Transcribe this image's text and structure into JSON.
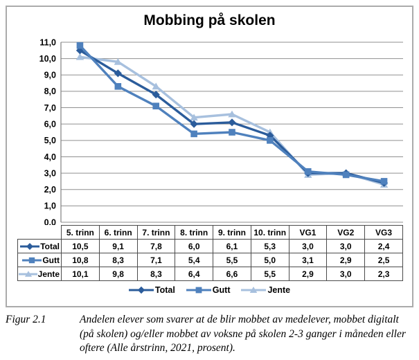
{
  "figure": {
    "caption_label": "Figur 2.1",
    "caption_text": "Andelen elever som svarer at de blir mobbet av medelever, mobbet digitalt (på skolen) og/eller mobbet av voksne på skolen 2-3 ganger i måneden eller oftere (Alle årstrinn, 2021, prosent)."
  },
  "chart_data": {
    "type": "line",
    "title": "Mobbing på skolen",
    "categories": [
      "5. trinn",
      "6. trinn",
      "7. trinn",
      "8. trinn",
      "9. trinn",
      "10. trinn",
      "VG1",
      "VG2",
      "VG3"
    ],
    "series": [
      {
        "name": "Total",
        "marker": "diamond",
        "color": "#2b5c9b",
        "values": [
          10.5,
          9.1,
          7.8,
          6.0,
          6.1,
          5.3,
          3.0,
          3.0,
          2.4
        ]
      },
      {
        "name": "Gutt",
        "marker": "square",
        "color": "#4f81bd",
        "values": [
          10.8,
          8.3,
          7.1,
          5.4,
          5.5,
          5.0,
          3.1,
          2.9,
          2.5
        ]
      },
      {
        "name": "Jente",
        "marker": "triangle",
        "color": "#a7c0de",
        "values": [
          10.1,
          9.8,
          8.3,
          6.4,
          6.6,
          5.5,
          2.9,
          3.0,
          2.3
        ]
      }
    ],
    "draw_order": [
      2,
      0,
      1
    ],
    "ylim": [
      0,
      11
    ],
    "ytick_step": 1,
    "decimal_separator": ",",
    "grid": true,
    "legend_position": "bottom",
    "data_table_shown": true
  },
  "colors": {
    "gridline": "#8f8f8f",
    "axis": "#808080",
    "frame_border": "#ababab",
    "table_border": "#4a4a4a",
    "text": "#000000"
  }
}
